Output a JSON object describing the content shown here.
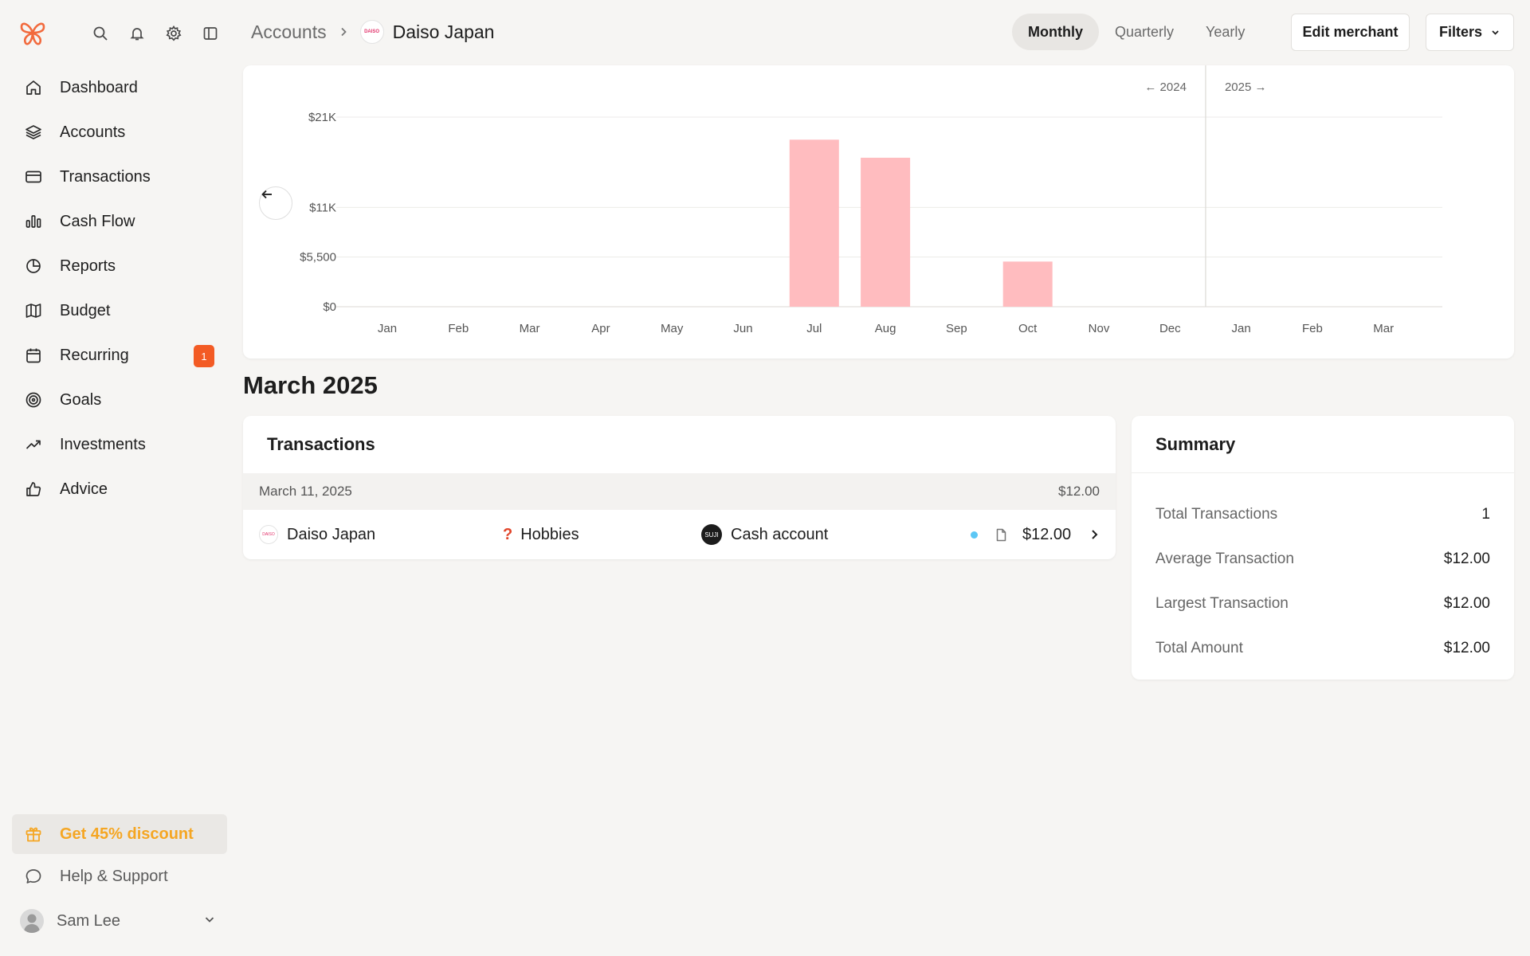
{
  "sidebar": {
    "items": [
      {
        "label": "Dashboard",
        "icon": "home-icon"
      },
      {
        "label": "Accounts",
        "icon": "layers-icon"
      },
      {
        "label": "Transactions",
        "icon": "credit-card-icon"
      },
      {
        "label": "Cash Flow",
        "icon": "bar-chart-icon"
      },
      {
        "label": "Reports",
        "icon": "pie-chart-icon"
      },
      {
        "label": "Budget",
        "icon": "map-icon"
      },
      {
        "label": "Recurring",
        "icon": "calendar-icon",
        "badge": "1"
      },
      {
        "label": "Goals",
        "icon": "target-icon"
      },
      {
        "label": "Investments",
        "icon": "trending-up-icon"
      },
      {
        "label": "Advice",
        "icon": "thumbs-up-icon"
      }
    ],
    "discount_label": "Get 45% discount",
    "help_label": "Help & Support",
    "user_name": "Sam Lee"
  },
  "header": {
    "breadcrumb_root": "Accounts",
    "merchant_logo_text": "DAISO",
    "title": "Daiso Japan",
    "periods": [
      "Monthly",
      "Quarterly",
      "Yearly"
    ],
    "active_period": "Monthly",
    "edit_label": "Edit merchant",
    "filters_label": "Filters"
  },
  "chart_data": {
    "type": "bar",
    "categories": [
      "Jan",
      "Feb",
      "Mar",
      "Apr",
      "May",
      "Jun",
      "Jul",
      "Aug",
      "Sep",
      "Oct",
      "Nov",
      "Dec",
      "Jan",
      "Feb",
      "Mar"
    ],
    "values": [
      0,
      0,
      0,
      0,
      0,
      0,
      18500,
      16500,
      0,
      5000,
      0,
      0,
      0,
      0,
      0
    ],
    "yticks": [
      {
        "value": 0,
        "label": "$0"
      },
      {
        "value": 5500,
        "label": "$5,500"
      },
      {
        "value": 11000,
        "label": "$11K"
      },
      {
        "value": 21000,
        "label": "$21K"
      }
    ],
    "ylim": [
      0,
      21000
    ],
    "year_left_label": "← 2024",
    "year_right_label": "2025 →",
    "bar_color": "#ffbcbf"
  },
  "month_title": "March 2025",
  "transactions": {
    "title": "Transactions",
    "date": "March 11, 2025",
    "date_total": "$12.00",
    "rows": [
      {
        "merchant": "Daiso Japan",
        "category": "Hobbies",
        "category_icon": "?",
        "account": "Cash account",
        "account_logo": "SUJI",
        "amount": "$12.00"
      }
    ]
  },
  "summary": {
    "title": "Summary",
    "rows": [
      {
        "label": "Total Transactions",
        "value": "1"
      },
      {
        "label": "Average Transaction",
        "value": "$12.00"
      },
      {
        "label": "Largest Transaction",
        "value": "$12.00"
      },
      {
        "label": "Total Amount",
        "value": "$12.00"
      }
    ]
  }
}
